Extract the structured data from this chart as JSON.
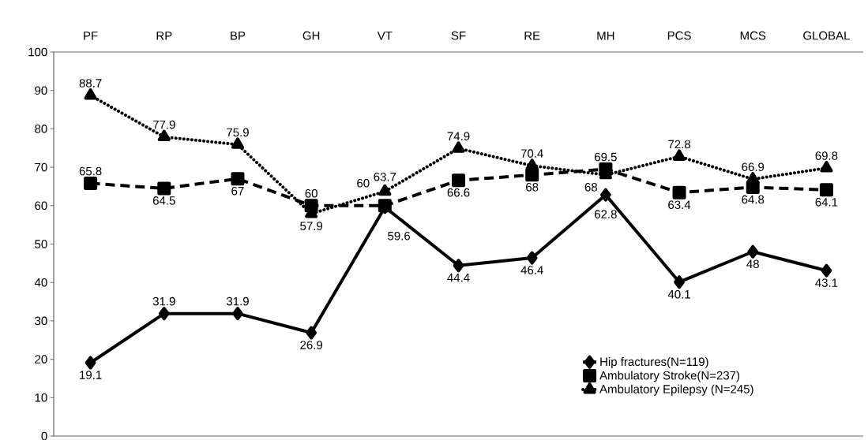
{
  "chart_data": {
    "type": "line",
    "categories": [
      "PF",
      "RP",
      "BP",
      "GH",
      "VT",
      "SF",
      "RE",
      "MH",
      "PCS",
      "MCS",
      "GLOBAL"
    ],
    "series": [
      {
        "name": "Hip fractures(N=119)",
        "color": "#000000",
        "marker": "diamond",
        "line_style": "solid",
        "values": [
          19.1,
          31.9,
          31.9,
          26.9,
          59.6,
          44.4,
          46.4,
          62.8,
          40.1,
          48,
          43.1
        ]
      },
      {
        "name": "Ambulatory Stroke(N=237)",
        "color": "#000000",
        "marker": "square",
        "line_style": "dashed",
        "values": [
          65.8,
          64.5,
          67,
          60,
          60,
          66.6,
          68,
          69.5,
          63.4,
          64.8,
          64.1
        ]
      },
      {
        "name": "Ambulatory Epilepsy (N=245)",
        "color": "#000000",
        "marker": "triangle",
        "line_style": "dotted",
        "values": [
          88.7,
          77.9,
          75.9,
          57.9,
          63.7,
          74.9,
          70.4,
          68,
          72.8,
          66.9,
          69.8
        ]
      }
    ],
    "ylim": [
      0,
      100
    ],
    "yticks": [
      0,
      10,
      20,
      30,
      40,
      50,
      60,
      70,
      80,
      90,
      100
    ],
    "grid": false,
    "legend": "bottom right",
    "data_labels": true
  }
}
